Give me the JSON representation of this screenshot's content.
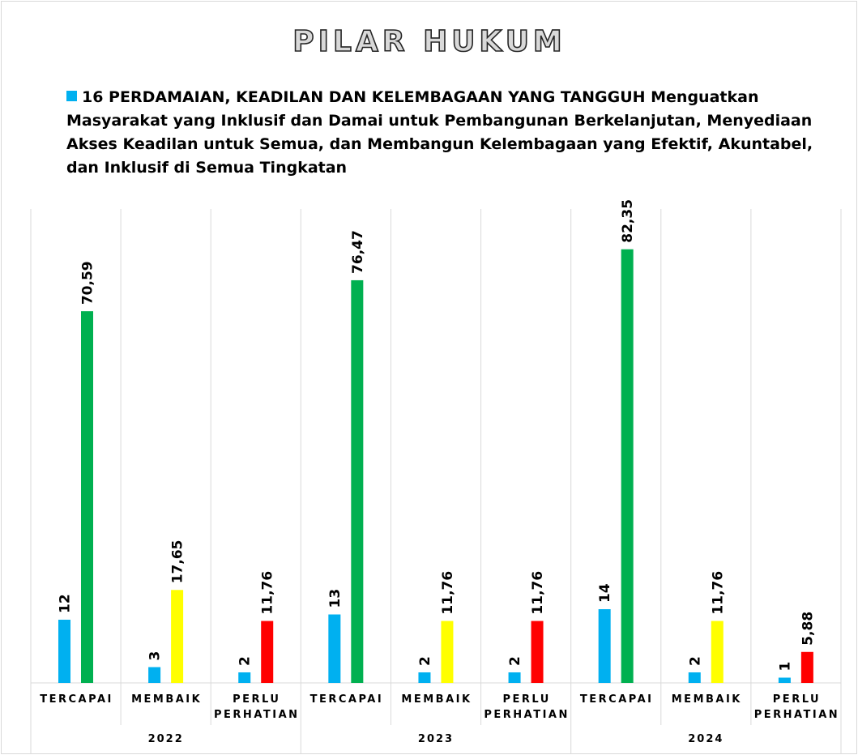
{
  "chart_data": {
    "type": "bar",
    "title": "PILAR HUKUM",
    "categories": [
      "TERCAPAI",
      "MEMBAIK",
      "PERLU PERHATIAN",
      "TERCAPAI",
      "MEMBAIK",
      "PERLU PERHATIAN",
      "TERCAPAI",
      "MEMBAIK",
      "PERLU PERHATIAN"
    ],
    "groups": [
      "2022",
      "2023",
      "2024"
    ],
    "series": [
      {
        "name": "16 PERDAMAIAN, KEADILAN DAN KELEMBAGAAN YANG TANGGUH Menguatkan Masyarakat yang Inklusif dan Damai untuk Pembangunan Berkelanjutan, Menyediaan Akses Keadilan untuk Semua, dan Membangun Kelembagaan yang Efektif, Akuntabel, dan Inklusif di Semua Tingkatan",
        "color": "#00b0f0",
        "values": [
          12,
          3,
          2,
          13,
          2,
          2,
          14,
          2,
          1
        ]
      },
      {
        "colors": [
          "#00b050",
          "#ffff00",
          "#ff0000",
          "#00b050",
          "#ffff00",
          "#ff0000",
          "#00b050",
          "#ffff00",
          "#ff0000"
        ],
        "values": [
          70.59,
          17.65,
          11.76,
          76.47,
          11.76,
          11.76,
          82.35,
          11.76,
          5.88
        ],
        "value_labels": [
          "70,59",
          "17,65",
          "11,76",
          "76,47",
          "11,76",
          "11,76",
          "82,35",
          "11,76",
          "5,88"
        ]
      }
    ],
    "ylim": [
      0,
      90
    ]
  }
}
